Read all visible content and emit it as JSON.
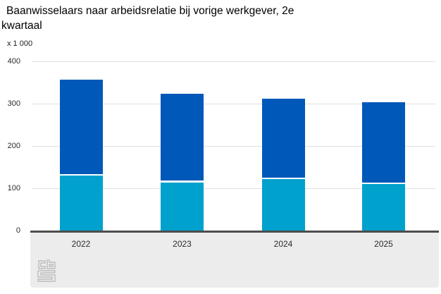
{
  "header": {
    "title_line1": "Baanwisselaars naar arbeidsrelatie bij vorige werkgever, 2e",
    "title_line2": "kwartaal",
    "unit_label": "x 1 000"
  },
  "logo": {
    "name": "cbs-logo"
  },
  "colors": {
    "dark_blue": "#0058b8",
    "light_blue": "#00a1cd",
    "gridline": "#e0e0e0",
    "axis_line": "#4d4d4d",
    "footer_bg": "#ececec",
    "logo_stroke": "#b3b3b3"
  },
  "chart_data": {
    "type": "bar",
    "stacked": true,
    "title": "Baanwisselaars naar arbeidsrelatie bij vorige werkgever, 2e kwartaal",
    "unit": "x 1 000",
    "categories": [
      "2022",
      "2023",
      "2024",
      "2025"
    ],
    "series": [
      {
        "name": "bottom-segment-light-blue",
        "color": "#00a1cd",
        "values": [
          131,
          115,
          122,
          111
        ]
      },
      {
        "name": "top-segment-dark-blue",
        "color": "#0058b8",
        "values": [
          226,
          209,
          191,
          193
        ]
      }
    ],
    "totals": [
      357,
      324,
      313,
      304
    ],
    "xlabel": "",
    "ylabel": "x 1 000",
    "ylim": [
      0,
      400
    ],
    "yticks": [
      0,
      100,
      200,
      300,
      400
    ],
    "grid": true,
    "legend": "none"
  }
}
